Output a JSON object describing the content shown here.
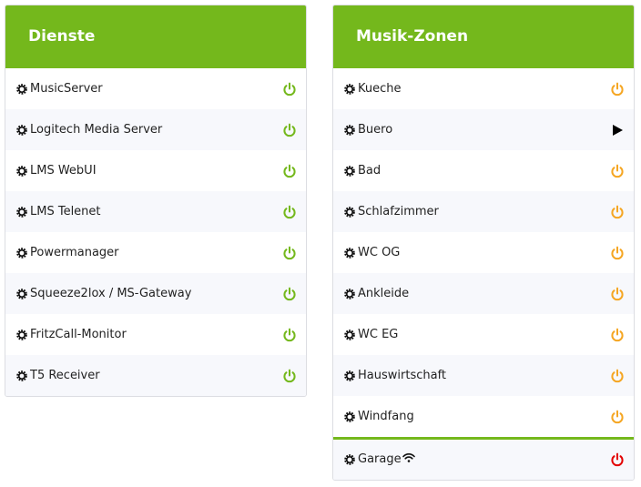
{
  "panels": [
    {
      "title": "Dienste",
      "items": [
        "MusicServer",
        "Logitech Media Server",
        "LMS WebUI",
        "LMS Telenet",
        "Powermanager",
        "Squeeze2lox / MS-Gateway",
        "FritzCall-Monitor",
        "T5 Receiver"
      ]
    },
    {
      "title": "Musik-Zonen",
      "items": [
        "Kueche",
        "Buero",
        "Bad",
        "Schlafzimmer",
        "WC OG",
        "Ankleide",
        "WC EG",
        "Hauswirtschaft",
        "Windfang",
        "Garage"
      ]
    }
  ]
}
